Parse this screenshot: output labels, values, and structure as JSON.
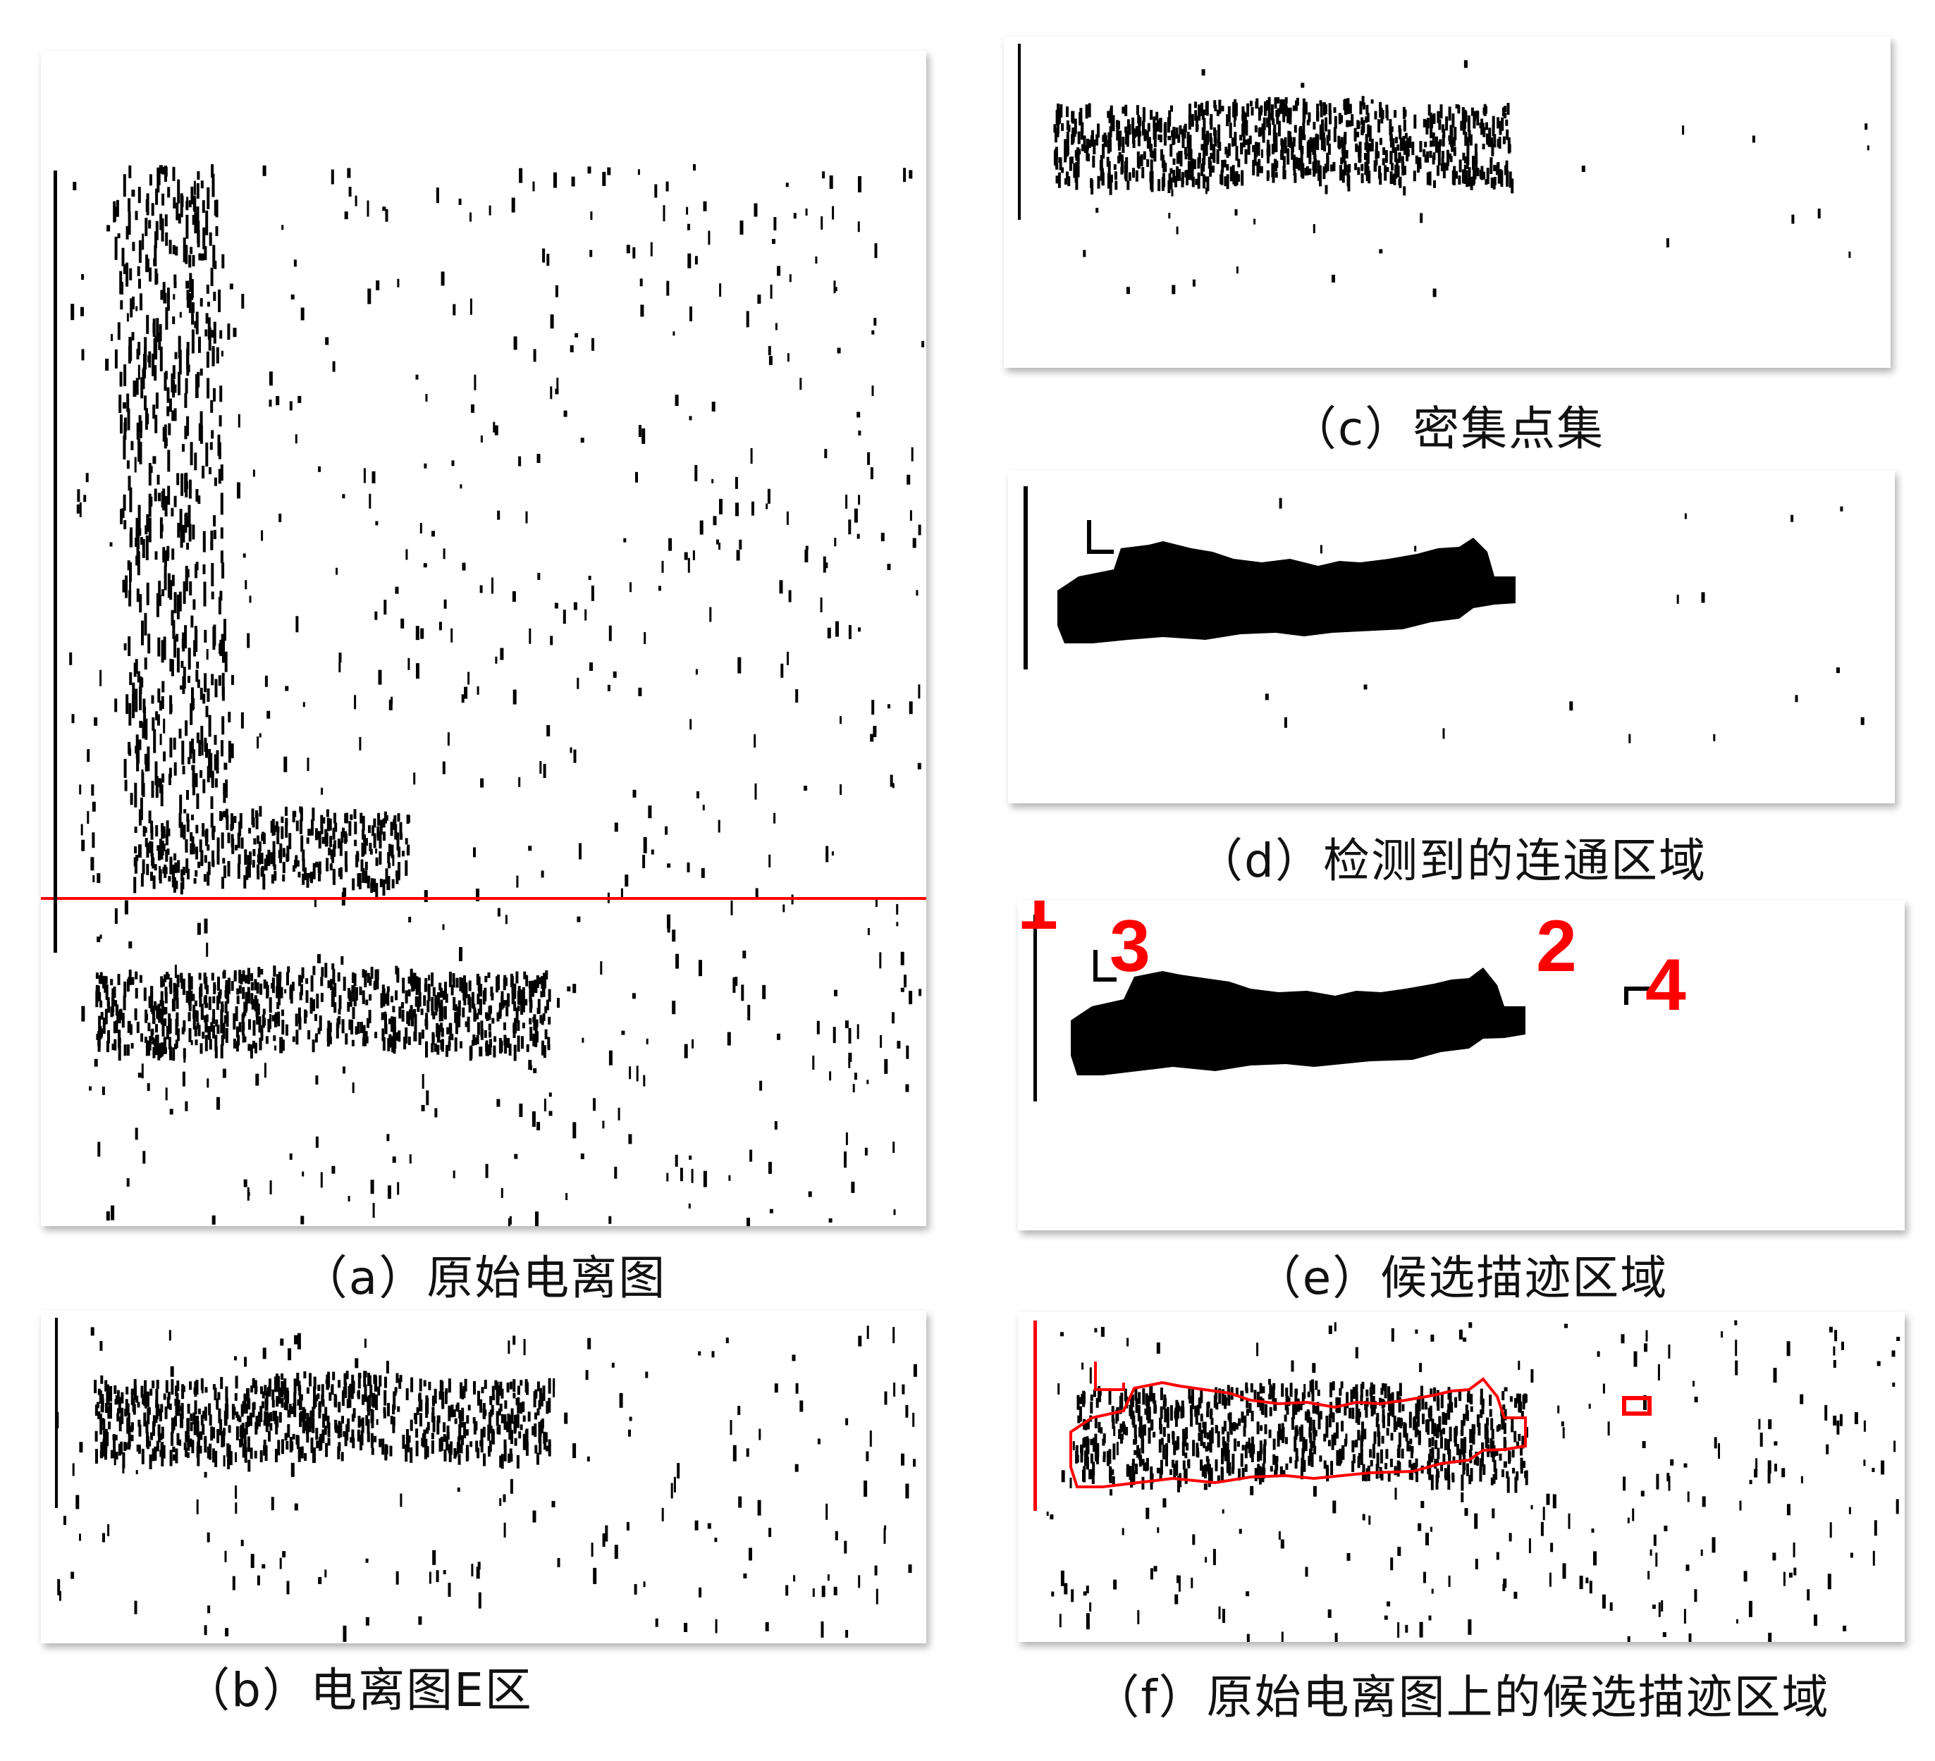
{
  "colors": {
    "ink": "#000000",
    "highlight": "#ff0000",
    "background": "#ffffff"
  },
  "panels": {
    "a": {
      "caption": "（a）原始电离图"
    },
    "b": {
      "caption": "（b）电离图E区"
    },
    "c": {
      "caption": "（c）密集点集"
    },
    "d": {
      "caption": "（d）检测到的连通区域"
    },
    "e": {
      "caption": "（e）候选描迹区域",
      "region_labels": [
        "1",
        "2",
        "3",
        "4"
      ]
    },
    "f": {
      "caption": "（f）原始电离图上的候选描迹区域"
    }
  }
}
